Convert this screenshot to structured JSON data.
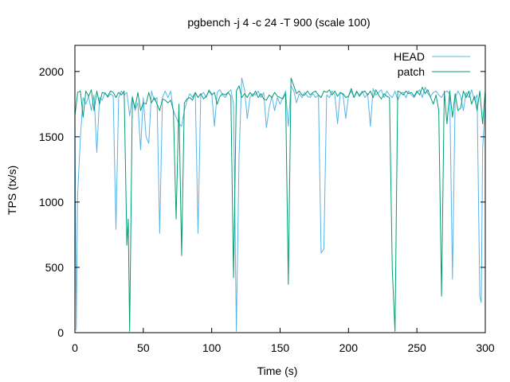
{
  "chart_data": {
    "type": "line",
    "title": "pgbench -j 4 -c 24 -T 900 (scale 100)",
    "xlabel": "Time (s)",
    "ylabel": "TPS (tx/s)",
    "xlim": [
      0,
      300
    ],
    "ylim": [
      0,
      2200
    ],
    "xticks": [
      0,
      50,
      100,
      150,
      200,
      250,
      300
    ],
    "yticks": [
      0,
      500,
      1000,
      1500,
      2000
    ],
    "grid": false,
    "legend_position": "top-right",
    "series": [
      {
        "name": "HEAD",
        "color": "#56b4e9",
        "points": [
          [
            0,
            1700
          ],
          [
            1,
            20
          ],
          [
            2,
            1050
          ],
          [
            4,
            1500
          ],
          [
            6,
            1800
          ],
          [
            8,
            1750
          ],
          [
            10,
            1810
          ],
          [
            12,
            1700
          ],
          [
            14,
            1820
          ],
          [
            16,
            1380
          ],
          [
            18,
            1800
          ],
          [
            20,
            1780
          ],
          [
            22,
            1840
          ],
          [
            24,
            1800
          ],
          [
            26,
            1830
          ],
          [
            28,
            1810
          ],
          [
            30,
            790
          ],
          [
            32,
            1800
          ],
          [
            34,
            1850
          ],
          [
            36,
            1820
          ],
          [
            38,
            1840
          ],
          [
            40,
            1660
          ],
          [
            42,
            1810
          ],
          [
            44,
            1700
          ],
          [
            46,
            1760
          ],
          [
            48,
            1400
          ],
          [
            50,
            1800
          ],
          [
            52,
            1500
          ],
          [
            54,
            1450
          ],
          [
            56,
            1850
          ],
          [
            58,
            1780
          ],
          [
            60,
            1800
          ],
          [
            62,
            760
          ],
          [
            64,
            1800
          ],
          [
            66,
            1850
          ],
          [
            68,
            1800
          ],
          [
            70,
            1850
          ],
          [
            72,
            1700
          ],
          [
            74,
            1650
          ],
          [
            76,
            1600
          ],
          [
            78,
            1580
          ],
          [
            80,
            1700
          ],
          [
            82,
            1780
          ],
          [
            84,
            1830
          ],
          [
            86,
            1800
          ],
          [
            88,
            1840
          ],
          [
            90,
            760
          ],
          [
            92,
            1820
          ],
          [
            94,
            1840
          ],
          [
            96,
            1800
          ],
          [
            98,
            1860
          ],
          [
            100,
            1830
          ],
          [
            102,
            1580
          ],
          [
            104,
            1840
          ],
          [
            106,
            1860
          ],
          [
            108,
            1820
          ],
          [
            110,
            1800
          ],
          [
            112,
            1840
          ],
          [
            114,
            1860
          ],
          [
            116,
            1750
          ],
          [
            118,
            10
          ],
          [
            120,
            1350
          ],
          [
            122,
            1950
          ],
          [
            124,
            1860
          ],
          [
            126,
            1640
          ],
          [
            128,
            1800
          ],
          [
            130,
            1830
          ],
          [
            132,
            1820
          ],
          [
            134,
            1850
          ],
          [
            136,
            1800
          ],
          [
            138,
            1840
          ],
          [
            140,
            1570
          ],
          [
            142,
            1720
          ],
          [
            144,
            1810
          ],
          [
            146,
            1700
          ],
          [
            148,
            1800
          ],
          [
            150,
            1750
          ],
          [
            152,
            1800
          ],
          [
            154,
            1850
          ],
          [
            156,
            1580
          ],
          [
            158,
            1890
          ],
          [
            160,
            1850
          ],
          [
            162,
            1760
          ],
          [
            164,
            1830
          ],
          [
            166,
            1800
          ],
          [
            168,
            1840
          ],
          [
            170,
            1810
          ],
          [
            172,
            1800
          ],
          [
            174,
            1830
          ],
          [
            176,
            1800
          ],
          [
            178,
            1820
          ],
          [
            180,
            610
          ],
          [
            182,
            640
          ],
          [
            184,
            1820
          ],
          [
            186,
            1800
          ],
          [
            188,
            1850
          ],
          [
            190,
            1820
          ],
          [
            192,
            1600
          ],
          [
            194,
            1840
          ],
          [
            196,
            1820
          ],
          [
            198,
            1640
          ],
          [
            200,
            1810
          ],
          [
            202,
            1850
          ],
          [
            204,
            1800
          ],
          [
            206,
            1840
          ],
          [
            208,
            1820
          ],
          [
            210,
            1850
          ],
          [
            212,
            1800
          ],
          [
            214,
            1830
          ],
          [
            216,
            1580
          ],
          [
            218,
            1870
          ],
          [
            220,
            1820
          ],
          [
            222,
            1840
          ],
          [
            224,
            1860
          ],
          [
            226,
            1800
          ],
          [
            228,
            1850
          ],
          [
            230,
            1820
          ],
          [
            232,
            1800
          ],
          [
            234,
            1850
          ],
          [
            236,
            1780
          ],
          [
            238,
            1830
          ],
          [
            240,
            1840
          ],
          [
            242,
            1800
          ],
          [
            244,
            1850
          ],
          [
            246,
            1820
          ],
          [
            248,
            1800
          ],
          [
            250,
            1840
          ],
          [
            252,
            1860
          ],
          [
            254,
            1800
          ],
          [
            256,
            1880
          ],
          [
            258,
            1830
          ],
          [
            260,
            1810
          ],
          [
            262,
            1840
          ],
          [
            264,
            1850
          ],
          [
            266,
            1820
          ],
          [
            268,
            1800
          ],
          [
            270,
            1840
          ],
          [
            272,
            1850
          ],
          [
            274,
            1830
          ],
          [
            276,
            410
          ],
          [
            278,
            1800
          ],
          [
            280,
            1850
          ],
          [
            282,
            1810
          ],
          [
            284,
            1700
          ],
          [
            286,
            1840
          ],
          [
            288,
            1800
          ],
          [
            290,
            1860
          ],
          [
            292,
            1780
          ],
          [
            294,
            1820
          ],
          [
            296,
            280
          ],
          [
            297,
            230
          ],
          [
            298,
            1400
          ],
          [
            300,
            1760
          ]
        ]
      },
      {
        "name": "patch",
        "color": "#009e73",
        "points": [
          [
            0,
            1660
          ],
          [
            2,
            1840
          ],
          [
            4,
            1850
          ],
          [
            6,
            1650
          ],
          [
            8,
            1850
          ],
          [
            10,
            1810
          ],
          [
            12,
            1860
          ],
          [
            14,
            1700
          ],
          [
            16,
            1850
          ],
          [
            18,
            1750
          ],
          [
            20,
            1840
          ],
          [
            22,
            1830
          ],
          [
            24,
            1810
          ],
          [
            26,
            1850
          ],
          [
            28,
            1840
          ],
          [
            30,
            1800
          ],
          [
            32,
            1840
          ],
          [
            34,
            1820
          ],
          [
            36,
            1850
          ],
          [
            38,
            670
          ],
          [
            39,
            870
          ],
          [
            40,
            10
          ],
          [
            42,
            1800
          ],
          [
            44,
            1720
          ],
          [
            46,
            1840
          ],
          [
            48,
            1700
          ],
          [
            50,
            1760
          ],
          [
            52,
            1750
          ],
          [
            54,
            1840
          ],
          [
            56,
            1760
          ],
          [
            58,
            1800
          ],
          [
            60,
            1750
          ],
          [
            62,
            1700
          ],
          [
            64,
            1790
          ],
          [
            66,
            1780
          ],
          [
            68,
            1760
          ],
          [
            70,
            1780
          ],
          [
            72,
            1700
          ],
          [
            74,
            870
          ],
          [
            76,
            1750
          ],
          [
            78,
            590
          ],
          [
            80,
            1760
          ],
          [
            82,
            1790
          ],
          [
            84,
            1800
          ],
          [
            86,
            1780
          ],
          [
            88,
            1840
          ],
          [
            90,
            1800
          ],
          [
            92,
            1830
          ],
          [
            94,
            1790
          ],
          [
            96,
            1810
          ],
          [
            98,
            1850
          ],
          [
            100,
            1820
          ],
          [
            102,
            1840
          ],
          [
            104,
            1750
          ],
          [
            106,
            1810
          ],
          [
            108,
            1830
          ],
          [
            110,
            1820
          ],
          [
            112,
            1840
          ],
          [
            114,
            1810
          ],
          [
            116,
            420
          ],
          [
            118,
            1850
          ],
          [
            120,
            1890
          ],
          [
            122,
            1800
          ],
          [
            124,
            1830
          ],
          [
            126,
            1800
          ],
          [
            128,
            1840
          ],
          [
            130,
            1810
          ],
          [
            132,
            1850
          ],
          [
            134,
            1800
          ],
          [
            136,
            1830
          ],
          [
            138,
            1790
          ],
          [
            140,
            1780
          ],
          [
            142,
            1820
          ],
          [
            144,
            1800
          ],
          [
            146,
            1840
          ],
          [
            148,
            1810
          ],
          [
            150,
            1800
          ],
          [
            152,
            1790
          ],
          [
            154,
            1830
          ],
          [
            156,
            370
          ],
          [
            158,
            1950
          ],
          [
            160,
            1890
          ],
          [
            162,
            1830
          ],
          [
            164,
            1850
          ],
          [
            166,
            1820
          ],
          [
            168,
            1820
          ],
          [
            170,
            1850
          ],
          [
            172,
            1820
          ],
          [
            174,
            1840
          ],
          [
            176,
            1850
          ],
          [
            178,
            1820
          ],
          [
            180,
            1800
          ],
          [
            182,
            1850
          ],
          [
            184,
            1840
          ],
          [
            186,
            1860
          ],
          [
            188,
            1820
          ],
          [
            190,
            1850
          ],
          [
            192,
            1810
          ],
          [
            194,
            1840
          ],
          [
            196,
            1830
          ],
          [
            198,
            1800
          ],
          [
            200,
            1810
          ],
          [
            202,
            1870
          ],
          [
            204,
            1800
          ],
          [
            206,
            1850
          ],
          [
            208,
            1810
          ],
          [
            210,
            1840
          ],
          [
            212,
            1850
          ],
          [
            214,
            1820
          ],
          [
            216,
            1850
          ],
          [
            218,
            1800
          ],
          [
            220,
            1860
          ],
          [
            222,
            1820
          ],
          [
            224,
            1790
          ],
          [
            226,
            1830
          ],
          [
            228,
            1810
          ],
          [
            230,
            1800
          ],
          [
            232,
            480
          ],
          [
            234,
            10
          ],
          [
            236,
            1850
          ],
          [
            238,
            1840
          ],
          [
            240,
            1820
          ],
          [
            242,
            1850
          ],
          [
            244,
            1830
          ],
          [
            246,
            1840
          ],
          [
            248,
            1810
          ],
          [
            250,
            1850
          ],
          [
            252,
            1820
          ],
          [
            254,
            1880
          ],
          [
            256,
            1830
          ],
          [
            258,
            1860
          ],
          [
            260,
            1800
          ],
          [
            262,
            1750
          ],
          [
            264,
            1820
          ],
          [
            266,
            1700
          ],
          [
            268,
            280
          ],
          [
            270,
            1850
          ],
          [
            272,
            1600
          ],
          [
            274,
            1850
          ],
          [
            276,
            1650
          ],
          [
            278,
            1830
          ],
          [
            280,
            1700
          ],
          [
            282,
            1720
          ],
          [
            284,
            1850
          ],
          [
            286,
            1800
          ],
          [
            288,
            1850
          ],
          [
            290,
            1750
          ],
          [
            292,
            1810
          ],
          [
            294,
            1700
          ],
          [
            296,
            1850
          ],
          [
            298,
            1600
          ],
          [
            300,
            1850
          ]
        ]
      }
    ]
  }
}
